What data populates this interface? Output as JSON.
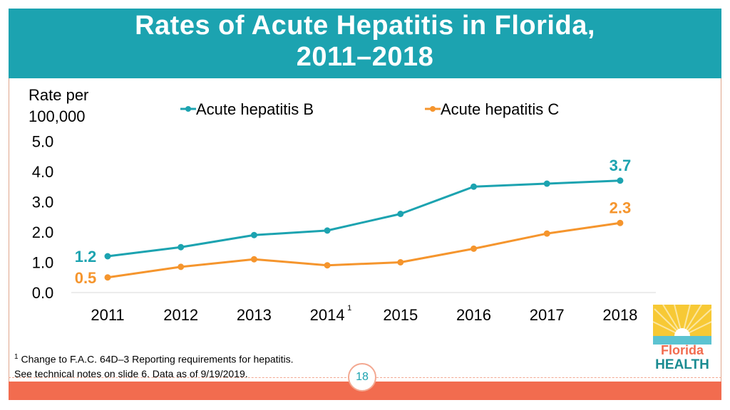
{
  "slide": {
    "title_line1": "Rates of Acute Hepatitis in Florida,",
    "title_line2": "2011–2018",
    "page_number": "18",
    "footnote_marker": "1",
    "footnote_line1": "Change to F.A.C. 64D–3 Reporting requirements for hepatitis.",
    "footnote_line2": "See technical notes on slide 6. Data as of 9/19/2019.",
    "logo_text_line1": "Florida",
    "logo_text_line2": "HEALTH"
  },
  "chart_data": {
    "type": "line",
    "title": "Rates of Acute Hepatitis in Florida, 2011–2018",
    "ylabel_line1": "Rate per",
    "ylabel_line2": "100,000",
    "xlabel": "",
    "categories": [
      "2011",
      "2012",
      "2013",
      "2014",
      "2015",
      "2016",
      "2017",
      "2018"
    ],
    "category_superscripts": {
      "2014": "1"
    },
    "ylim": [
      0,
      5
    ],
    "yticks": [
      "0.0",
      "1.0",
      "2.0",
      "3.0",
      "4.0",
      "5.0"
    ],
    "legend_position": "top",
    "series": [
      {
        "name": "Acute hepatitis B",
        "color": "#1ca3b0",
        "values": [
          1.2,
          1.5,
          1.9,
          2.05,
          2.6,
          3.5,
          3.6,
          3.7
        ],
        "start_label": "1.2",
        "end_label": "3.7"
      },
      {
        "name": "Acute hepatitis C",
        "color": "#f5952d",
        "values": [
          0.5,
          0.85,
          1.1,
          0.9,
          1.0,
          1.45,
          1.95,
          2.3
        ],
        "start_label": "0.5",
        "end_label": "2.3"
      }
    ]
  }
}
